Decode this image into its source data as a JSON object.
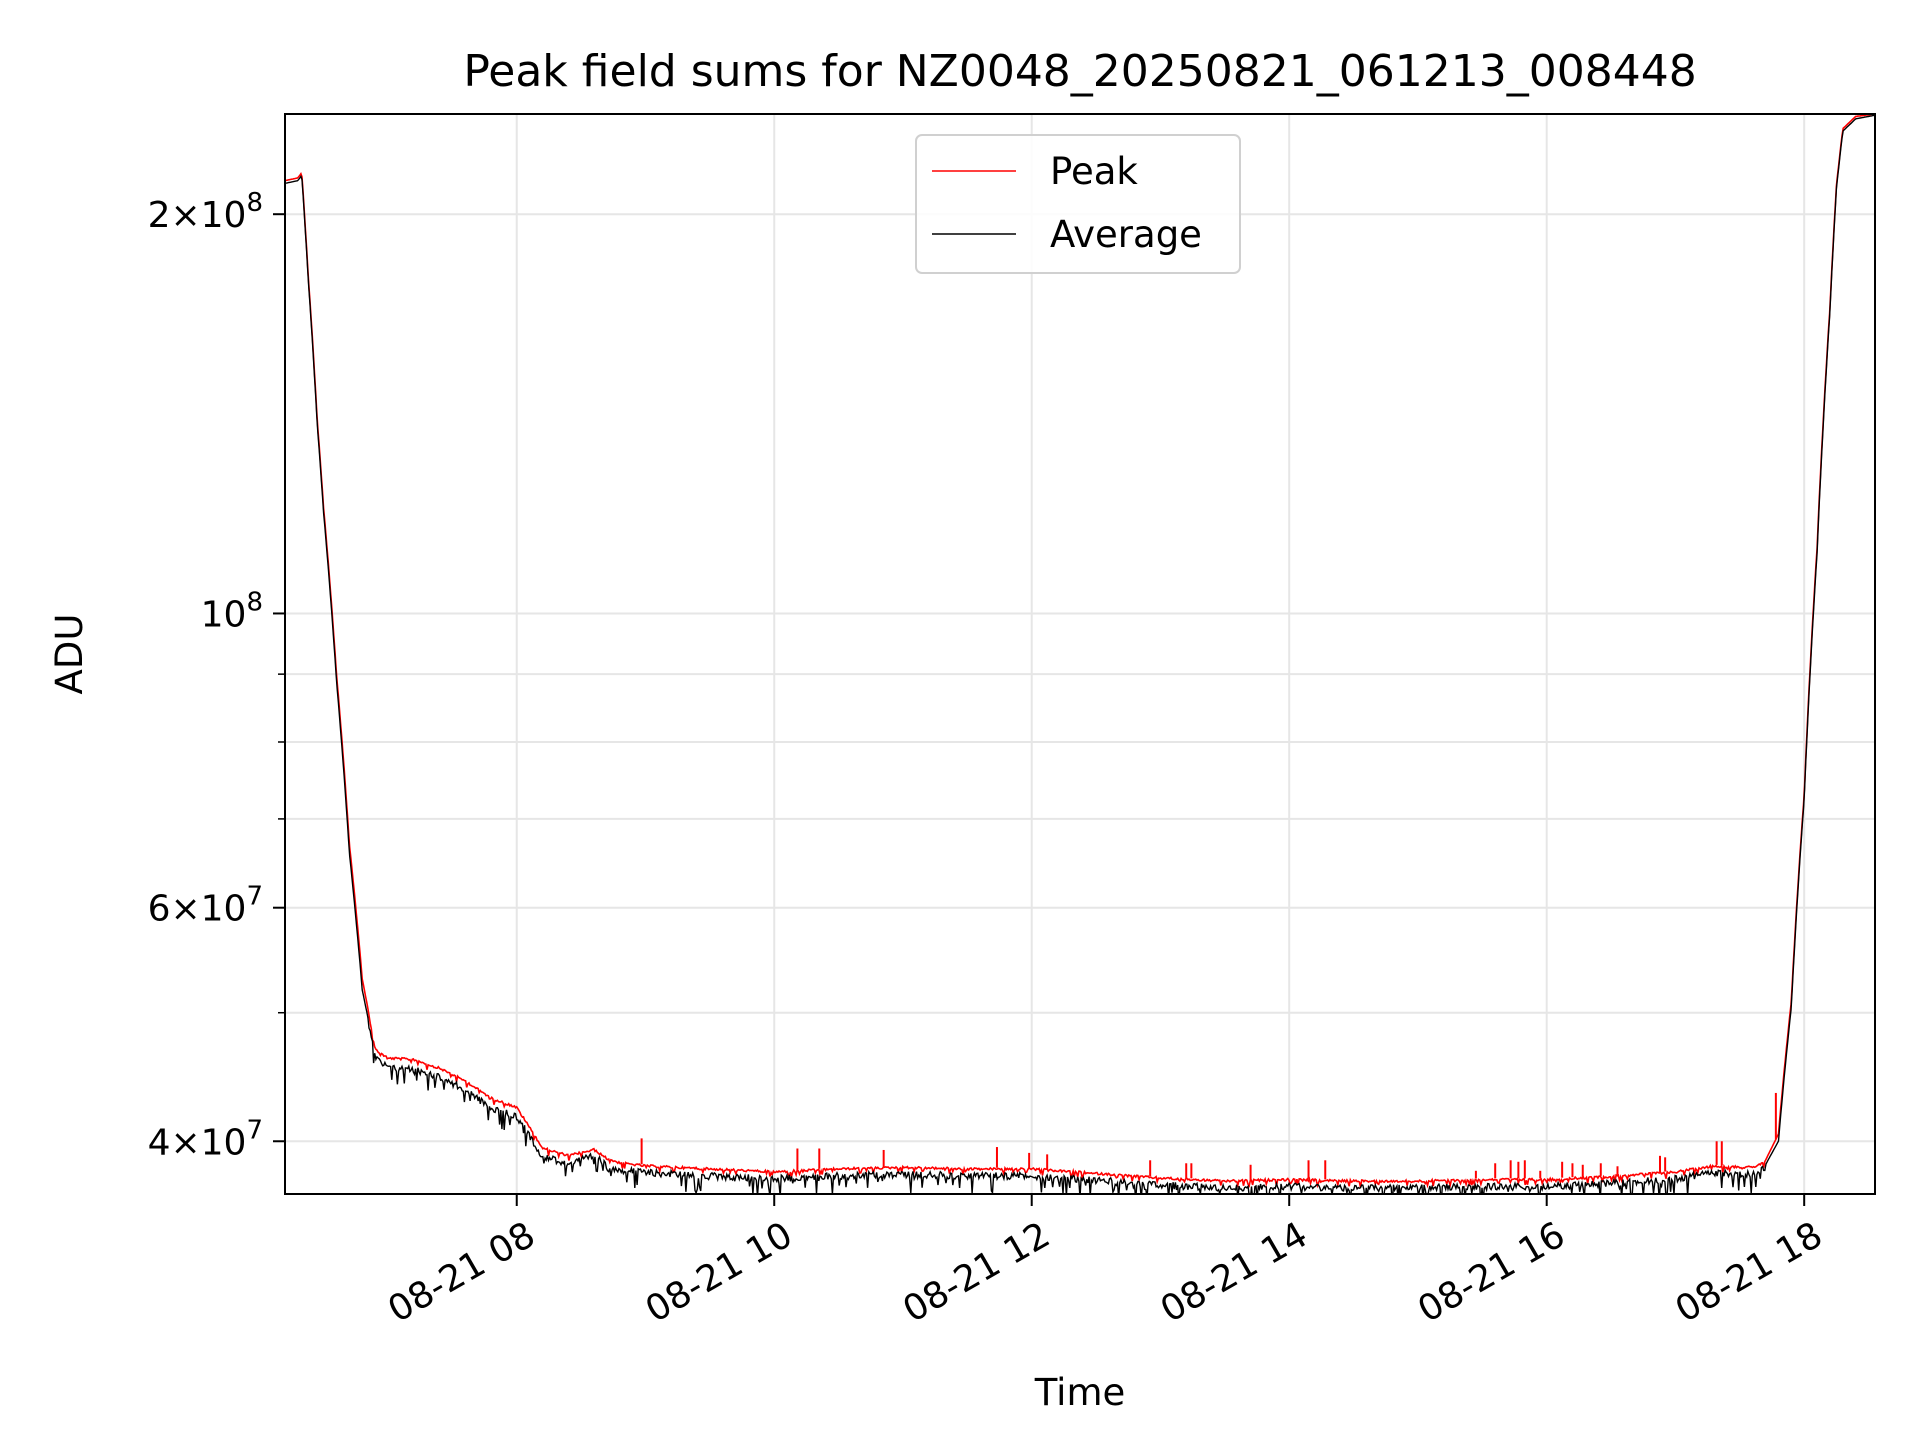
{
  "chart_data": {
    "type": "line",
    "title": "Peak field sums for NZ0048_20250821_061213_008448",
    "xlabel": "Time",
    "ylabel": "ADU",
    "y_scale": "log",
    "x_range_hours": [
      6.2,
      18.55
    ],
    "ylim": [
      36500000,
      238000000
    ],
    "grid": true,
    "legend_position": "upper center",
    "x_tick_hours": [
      8,
      10,
      12,
      14,
      16,
      18
    ],
    "x_tick_labels": [
      "08-21 08",
      "08-21 10",
      "08-21 12",
      "08-21 14",
      "08-21 16",
      "08-21 18"
    ],
    "y_major_ticks": [
      {
        "value": 40000000,
        "base": "4",
        "exp": "7"
      },
      {
        "value": 60000000,
        "base": "6",
        "exp": "7"
      },
      {
        "value": 100000000,
        "base": "",
        "exp": "8"
      },
      {
        "value": 200000000,
        "base": "2",
        "exp": "8"
      }
    ],
    "y_minor_ticks": [
      50000000,
      70000000,
      80000000,
      90000000
    ],
    "series": [
      {
        "name": "Peak",
        "color": "#ff0000",
        "x_hours": [
          6.2,
          6.3,
          6.33,
          6.38,
          6.45,
          6.5,
          6.6,
          6.7,
          6.8,
          6.9,
          7.0,
          7.2,
          7.4,
          7.6,
          7.8,
          8.0,
          8.2,
          8.4,
          8.6,
          8.7,
          8.8,
          9.0,
          9.5,
          10.0,
          10.5,
          11.0,
          11.5,
          12.0,
          12.5,
          13.0,
          13.5,
          14.0,
          14.5,
          15.0,
          15.5,
          16.0,
          16.5,
          17.0,
          17.3,
          17.6,
          17.7,
          17.8,
          17.9,
          18.0,
          18.1,
          18.2,
          18.25,
          18.3,
          18.4,
          18.55
        ],
        "values": [
          212000000,
          213000000,
          215000000,
          180000000,
          140000000,
          120000000,
          90000000,
          67000000,
          53000000,
          47000000,
          46300000,
          46200000,
          45500000,
          44500000,
          43200000,
          42500000,
          39600000,
          39100000,
          39500000,
          38900000,
          38600000,
          38400000,
          38200000,
          38000000,
          38200000,
          38300000,
          38200000,
          38200000,
          37900000,
          37600000,
          37400000,
          37500000,
          37400000,
          37400000,
          37500000,
          37500000,
          37700000,
          38000000,
          38400000,
          38300000,
          38700000,
          40500000,
          51000000,
          73000000,
          112000000,
          170000000,
          210000000,
          232000000,
          237000000,
          238000000
        ],
        "spikes": [
          {
            "x_hours": 8.97,
            "value": 40200000
          },
          {
            "x_hours": 10.18,
            "value": 39500000
          },
          {
            "x_hours": 10.35,
            "value": 39500000
          },
          {
            "x_hours": 10.85,
            "value": 39400000
          },
          {
            "x_hours": 11.73,
            "value": 39600000
          },
          {
            "x_hours": 11.98,
            "value": 39200000
          },
          {
            "x_hours": 12.12,
            "value": 39100000
          },
          {
            "x_hours": 12.92,
            "value": 38700000
          },
          {
            "x_hours": 13.2,
            "value": 38500000
          },
          {
            "x_hours": 13.24,
            "value": 38500000
          },
          {
            "x_hours": 13.7,
            "value": 38400000
          },
          {
            "x_hours": 14.15,
            "value": 38700000
          },
          {
            "x_hours": 14.28,
            "value": 38700000
          },
          {
            "x_hours": 15.45,
            "value": 38000000
          },
          {
            "x_hours": 15.6,
            "value": 38500000
          },
          {
            "x_hours": 15.72,
            "value": 38700000
          },
          {
            "x_hours": 15.78,
            "value": 38600000
          },
          {
            "x_hours": 15.83,
            "value": 38700000
          },
          {
            "x_hours": 15.95,
            "value": 38000000
          },
          {
            "x_hours": 16.12,
            "value": 38600000
          },
          {
            "x_hours": 16.2,
            "value": 38500000
          },
          {
            "x_hours": 16.28,
            "value": 38400000
          },
          {
            "x_hours": 16.42,
            "value": 38500000
          },
          {
            "x_hours": 16.55,
            "value": 38300000
          },
          {
            "x_hours": 16.88,
            "value": 39000000
          },
          {
            "x_hours": 16.92,
            "value": 38900000
          },
          {
            "x_hours": 17.32,
            "value": 40000000
          },
          {
            "x_hours": 17.36,
            "value": 40000000
          },
          {
            "x_hours": 17.78,
            "value": 43500000
          }
        ]
      },
      {
        "name": "Average",
        "color": "#000000",
        "x_hours": [
          6.2,
          6.3,
          6.33,
          6.38,
          6.45,
          6.5,
          6.6,
          6.7,
          6.8,
          6.9,
          7.0,
          7.2,
          7.4,
          7.6,
          7.8,
          8.0,
          8.2,
          8.4,
          8.6,
          8.7,
          8.8,
          9.0,
          9.5,
          10.0,
          10.5,
          11.0,
          11.5,
          12.0,
          12.5,
          13.0,
          13.5,
          14.0,
          14.5,
          15.0,
          15.5,
          16.0,
          16.5,
          17.0,
          17.3,
          17.6,
          17.7,
          17.8,
          17.9,
          18.0,
          18.1,
          18.2,
          18.25,
          18.3,
          18.4,
          18.55
        ],
        "values": [
          211000000,
          212000000,
          214000000,
          179000000,
          139000000,
          119000000,
          89000000,
          66000000,
          52000000,
          46500000,
          45700000,
          45600000,
          45000000,
          44000000,
          42600000,
          42000000,
          39200000,
          38700000,
          39200000,
          38600000,
          38300000,
          38100000,
          37900000,
          37700000,
          37900000,
          38000000,
          37900000,
          37900000,
          37600000,
          37300000,
          37100000,
          37200000,
          37100000,
          37100000,
          37200000,
          37200000,
          37400000,
          37700000,
          38100000,
          38000000,
          38400000,
          40000000,
          50500000,
          72500000,
          111000000,
          169000000,
          209000000,
          231000000,
          236000000,
          237500000
        ]
      }
    ]
  }
}
